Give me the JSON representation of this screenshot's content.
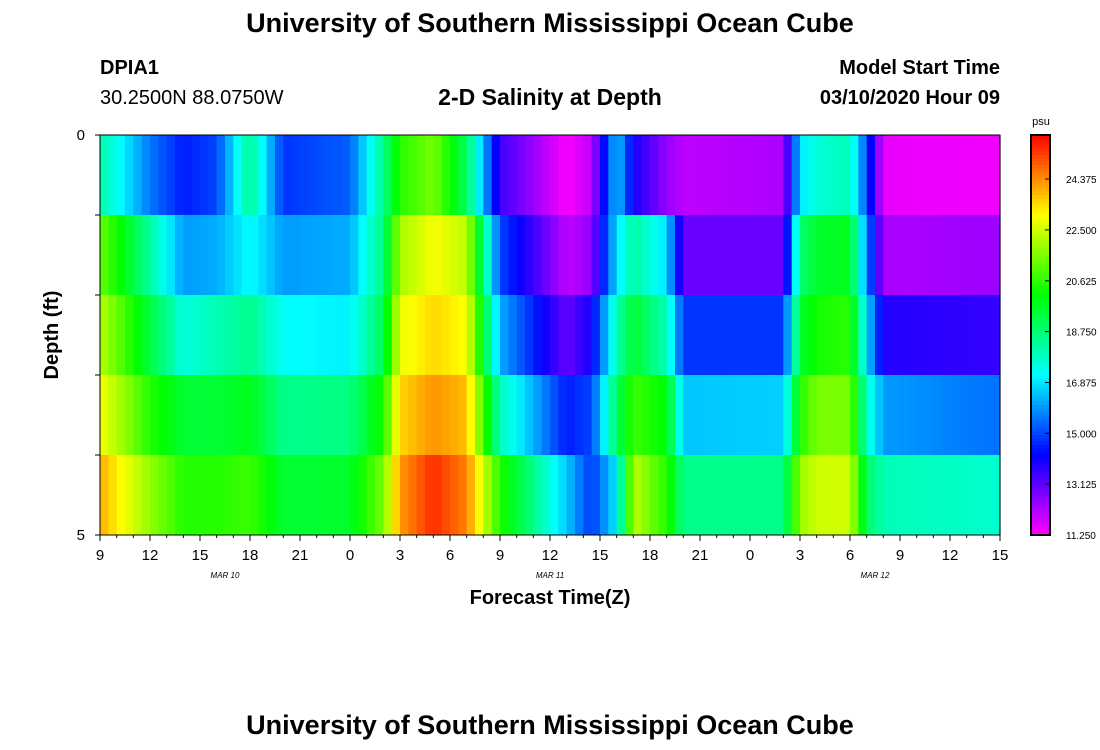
{
  "page": {
    "title_top": "University of Southern Mississippi Ocean Cube",
    "title_bottom": "University of Southern Mississippi Ocean Cube",
    "station_id": "DPIA1",
    "location": "30.2500N 88.0750W",
    "plot_title": "2-D Salinity at Depth",
    "model_start_label": "Model Start Time",
    "model_start_value": "03/10/2020 Hour 09"
  },
  "chart_data": {
    "type": "heatmap",
    "title": "2-D Salinity at Depth",
    "xlabel": "Forecast Time(Z)",
    "ylabel": "Depth (ft)",
    "x_ticks": [
      "9",
      "12",
      "15",
      "18",
      "21",
      "0",
      "3",
      "6",
      "9",
      "12",
      "15",
      "18",
      "21",
      "0",
      "3",
      "6",
      "9",
      "12",
      "15"
    ],
    "x_hours_range": [
      0,
      54
    ],
    "date_labels": [
      {
        "text": "MAR 10",
        "hour": 7.5
      },
      {
        "text": "MAR 11",
        "hour": 27
      },
      {
        "text": "MAR 12",
        "hour": 46.5
      }
    ],
    "y_ticks": [
      "0",
      "5"
    ],
    "ylim": [
      0,
      5
    ],
    "depth_levels": [
      0.5,
      1.5,
      2.5,
      3.5,
      4.5
    ],
    "colorbar": {
      "unit": "psu",
      "ticks": [
        "24.375",
        "22.500",
        "20.625",
        "18.750",
        "16.875",
        "15.000",
        "13.125",
        "11.250"
      ],
      "range": [
        11.25,
        26.0
      ]
    },
    "keyframes": [
      {
        "hour": 0,
        "values": [
          18.2,
          21.3,
          22.2,
          23.0,
          24.0
        ]
      },
      {
        "hour": 3,
        "values": [
          15.6,
          18.3,
          19.4,
          20.5,
          21.8
        ]
      },
      {
        "hour": 5,
        "values": [
          14.5,
          16.0,
          17.5,
          19.5,
          20.5
        ]
      },
      {
        "hour": 7,
        "values": [
          15.0,
          16.2,
          18.0,
          19.5,
          20.5
        ]
      },
      {
        "hour": 9,
        "values": [
          18.5,
          17.2,
          18.5,
          19.8,
          20.8
        ]
      },
      {
        "hour": 11,
        "values": [
          14.8,
          16.0,
          17.2,
          18.5,
          19.5
        ]
      },
      {
        "hour": 15,
        "values": [
          15.3,
          16.2,
          17.0,
          18.6,
          19.6
        ]
      },
      {
        "hour": 17,
        "values": [
          18.5,
          18.7,
          19.2,
          20.4,
          21.5
        ]
      },
      {
        "hour": 18,
        "values": [
          20.5,
          22.0,
          22.8,
          23.5,
          24.2
        ]
      },
      {
        "hour": 20,
        "values": [
          21.5,
          23.0,
          23.5,
          24.3,
          25.5
        ]
      },
      {
        "hour": 22,
        "values": [
          19.0,
          22.3,
          23.0,
          23.8,
          24.5
        ]
      },
      {
        "hour": 24,
        "values": [
          13.5,
          15.0,
          16.2,
          18.0,
          20.5
        ]
      },
      {
        "hour": 28,
        "values": [
          11.3,
          12.0,
          13.0,
          14.5,
          16.5
        ]
      },
      {
        "hour": 29.5,
        "values": [
          12.0,
          12.5,
          14.0,
          15.0,
          14.8
        ]
      },
      {
        "hour": 31,
        "values": [
          16.6,
          16.8,
          18.0,
          19.0,
          17.0
        ]
      },
      {
        "hour": 32,
        "values": [
          14.0,
          18.3,
          19.6,
          20.8,
          22.3
        ]
      },
      {
        "hour": 34,
        "values": [
          12.5,
          16.8,
          18.0,
          20.0,
          20.5
        ]
      },
      {
        "hour": 35,
        "values": [
          12.0,
          13.0,
          14.8,
          16.5,
          18.5
        ]
      },
      {
        "hour": 41,
        "values": [
          12.2,
          13.0,
          14.8,
          16.6,
          18.5
        ]
      },
      {
        "hour": 42,
        "values": [
          16.8,
          18.7,
          19.5,
          20.4,
          21.8
        ]
      },
      {
        "hour": 43,
        "values": [
          17.6,
          19.6,
          20.3,
          21.5,
          22.5
        ]
      },
      {
        "hour": 45,
        "values": [
          18.0,
          19.8,
          20.6,
          21.5,
          22.5
        ]
      },
      {
        "hour": 46,
        "values": [
          15.0,
          15.8,
          16.8,
          17.8,
          19.0
        ]
      },
      {
        "hour": 47,
        "values": [
          11.5,
          12.2,
          13.8,
          16.0,
          18.0
        ]
      },
      {
        "hour": 54,
        "values": [
          11.4,
          12.4,
          13.6,
          15.5,
          17.7
        ]
      }
    ]
  }
}
